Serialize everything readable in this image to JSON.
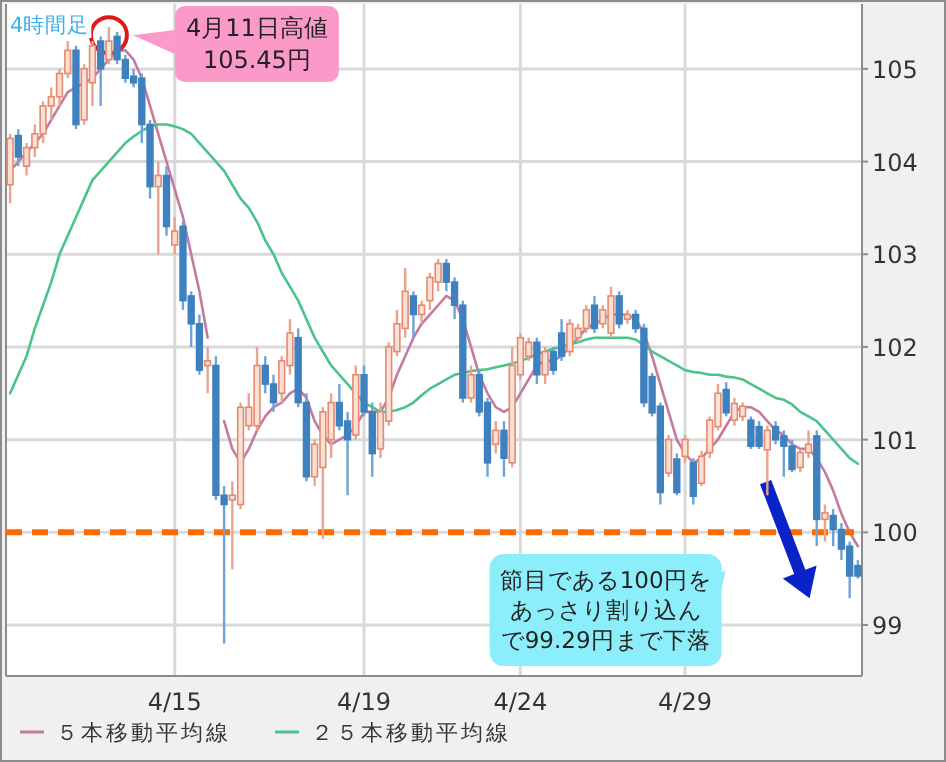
{
  "chart_data": {
    "type": "candlestick",
    "categories": [
      null,
      null,
      null,
      null,
      null,
      null,
      null,
      null,
      null,
      null,
      null,
      null,
      null,
      null,
      null,
      null,
      null,
      null,
      null,
      null,
      "4/15",
      null,
      null,
      null,
      null,
      null,
      null,
      null,
      null,
      null,
      null,
      null,
      null,
      null,
      null,
      null,
      null,
      null,
      null,
      null,
      null,
      null,
      null,
      "4/19",
      null,
      null,
      null,
      null,
      null,
      null,
      null,
      null,
      null,
      null,
      null,
      null,
      null,
      null,
      null,
      null,
      null,
      null,
      "4/24",
      null,
      null,
      null,
      null,
      null,
      null,
      null,
      null,
      null,
      null,
      null,
      null,
      null,
      null,
      null,
      null,
      null,
      null,
      null,
      "4/29",
      null,
      null,
      null,
      null,
      null,
      null,
      null,
      null,
      null,
      null,
      null,
      null,
      null,
      null,
      null,
      null,
      null,
      null,
      null,
      null,
      null
    ],
    "ohlc": [
      [
        103.75,
        104.3,
        103.55,
        104.25
      ],
      [
        104.28,
        104.35,
        103.95,
        104.05
      ],
      [
        103.95,
        104.2,
        103.85,
        104.15
      ],
      [
        104.15,
        104.4,
        104.05,
        104.3
      ],
      [
        104.3,
        104.65,
        104.2,
        104.6
      ],
      [
        104.6,
        104.8,
        104.45,
        104.7
      ],
      [
        104.7,
        105.0,
        104.6,
        104.95
      ],
      [
        104.95,
        105.3,
        104.9,
        105.2
      ],
      [
        105.2,
        105.25,
        104.35,
        104.4
      ],
      [
        104.45,
        105.05,
        104.4,
        105.0
      ],
      [
        104.85,
        105.3,
        104.6,
        105.25
      ],
      [
        105.3,
        105.35,
        104.6,
        105.0
      ],
      [
        105.1,
        105.45,
        105.05,
        105.3
      ],
      [
        105.35,
        105.4,
        105.05,
        105.1
      ],
      [
        105.1,
        105.15,
        104.85,
        104.9
      ],
      [
        104.92,
        105.0,
        104.8,
        104.85
      ],
      [
        104.9,
        104.95,
        104.2,
        104.4
      ],
      [
        104.4,
        104.45,
        103.6,
        103.73
      ],
      [
        103.73,
        104.0,
        103.0,
        103.85
      ],
      [
        103.85,
        103.95,
        103.2,
        103.3
      ],
      [
        103.1,
        103.4,
        103.0,
        103.25
      ],
      [
        103.3,
        103.35,
        102.4,
        102.5
      ],
      [
        102.55,
        102.6,
        102.0,
        102.25
      ],
      [
        102.25,
        102.35,
        101.7,
        101.75
      ],
      [
        101.8,
        102.0,
        101.5,
        101.85
      ],
      [
        101.8,
        101.9,
        100.35,
        100.4
      ],
      [
        100.4,
        100.5,
        98.8,
        100.3
      ],
      [
        100.35,
        100.55,
        99.6,
        100.4
      ],
      [
        100.3,
        101.4,
        100.25,
        101.35
      ],
      [
        101.15,
        101.5,
        101.1,
        101.35
      ],
      [
        101.15,
        102.0,
        101.1,
        101.8
      ],
      [
        101.8,
        101.9,
        101.5,
        101.6
      ],
      [
        101.6,
        101.7,
        101.3,
        101.4
      ],
      [
        101.5,
        101.9,
        101.4,
        101.85
      ],
      [
        101.8,
        102.3,
        101.7,
        102.15
      ],
      [
        102.1,
        102.2,
        101.35,
        101.4
      ],
      [
        101.4,
        101.5,
        100.55,
        100.6
      ],
      [
        100.6,
        101.0,
        100.5,
        100.95
      ],
      [
        100.7,
        101.35,
        99.93,
        101.3
      ],
      [
        101.0,
        101.5,
        100.8,
        101.4
      ],
      [
        101.4,
        101.6,
        101.1,
        101.15
      ],
      [
        101.2,
        101.3,
        100.4,
        101.0
      ],
      [
        101.05,
        101.8,
        101.0,
        101.7
      ],
      [
        101.7,
        101.8,
        101.25,
        101.3
      ],
      [
        101.3,
        101.4,
        100.6,
        100.85
      ],
      [
        100.9,
        101.4,
        100.8,
        101.3
      ],
      [
        101.2,
        102.05,
        101.15,
        102.0
      ],
      [
        101.95,
        102.4,
        101.9,
        102.25
      ],
      [
        102.2,
        102.85,
        102.1,
        102.6
      ],
      [
        102.55,
        102.6,
        102.1,
        102.35
      ],
      [
        102.35,
        102.5,
        102.25,
        102.45
      ],
      [
        102.5,
        102.8,
        102.4,
        102.75
      ],
      [
        102.7,
        102.95,
        102.6,
        102.9
      ],
      [
        102.9,
        102.95,
        102.6,
        102.7
      ],
      [
        102.7,
        102.75,
        102.3,
        102.45
      ],
      [
        102.45,
        102.5,
        101.4,
        101.45
      ],
      [
        101.45,
        101.8,
        101.4,
        101.7
      ],
      [
        101.7,
        101.75,
        101.25,
        101.3
      ],
      [
        101.4,
        101.45,
        100.6,
        100.75
      ],
      [
        100.95,
        101.2,
        100.85,
        101.1
      ],
      [
        101.1,
        101.2,
        100.6,
        100.8
      ],
      [
        100.75,
        102.0,
        100.7,
        101.8
      ],
      [
        101.7,
        102.15,
        101.65,
        102.1
      ],
      [
        101.9,
        102.1,
        101.85,
        102.05
      ],
      [
        102.05,
        102.1,
        101.6,
        101.7
      ],
      [
        101.7,
        102.0,
        101.6,
        101.95
      ],
      [
        101.95,
        102.0,
        101.7,
        101.75
      ],
      [
        102.15,
        102.3,
        101.85,
        101.9
      ],
      [
        101.95,
        102.3,
        101.9,
        102.25
      ],
      [
        102.1,
        102.25,
        102.05,
        102.2
      ],
      [
        102.2,
        102.45,
        102.15,
        102.4
      ],
      [
        102.45,
        102.55,
        102.15,
        102.2
      ],
      [
        102.25,
        102.45,
        102.2,
        102.4
      ],
      [
        102.15,
        102.65,
        102.1,
        102.55
      ],
      [
        102.55,
        102.6,
        102.2,
        102.25
      ],
      [
        102.3,
        102.4,
        102.25,
        102.35
      ],
      [
        102.35,
        102.4,
        102.15,
        102.2
      ],
      [
        102.2,
        102.25,
        101.35,
        101.4
      ],
      [
        101.68,
        101.72,
        101.25,
        101.29
      ],
      [
        101.36,
        101.4,
        100.3,
        100.43
      ],
      [
        100.64,
        101.05,
        100.6,
        101.0
      ],
      [
        100.79,
        100.85,
        100.4,
        100.43
      ],
      [
        100.82,
        101.05,
        100.75,
        101.0
      ],
      [
        100.75,
        100.8,
        100.3,
        100.39
      ],
      [
        100.53,
        100.88,
        100.5,
        100.82
      ],
      [
        100.86,
        101.25,
        100.8,
        101.21
      ],
      [
        101.14,
        101.6,
        101.1,
        101.5
      ],
      [
        101.54,
        101.62,
        101.25,
        101.29
      ],
      [
        101.21,
        101.45,
        101.15,
        101.39
      ],
      [
        101.25,
        101.4,
        101.2,
        101.36
      ],
      [
        101.21,
        101.25,
        100.9,
        100.93
      ],
      [
        101.14,
        101.2,
        100.9,
        100.93
      ],
      [
        100.89,
        101.15,
        100.4,
        101.1
      ],
      [
        101.14,
        101.2,
        100.95,
        101.0
      ],
      [
        101.04,
        101.1,
        100.6,
        100.93
      ],
      [
        100.93,
        101.0,
        100.65,
        100.68
      ],
      [
        100.7,
        100.9,
        100.65,
        100.86
      ],
      [
        100.86,
        101.1,
        100.8,
        100.95
      ],
      [
        101.04,
        101.1,
        99.85,
        100.14
      ],
      [
        100.14,
        100.3,
        99.9,
        100.21
      ],
      [
        100.18,
        100.25,
        99.85,
        100.03
      ],
      [
        100.03,
        100.1,
        99.7,
        99.82
      ],
      [
        99.85,
        99.9,
        99.29,
        99.53
      ],
      [
        99.64,
        99.7,
        99.5,
        99.53
      ]
    ],
    "series": [
      {
        "name": "５本移動平均線",
        "type": "line",
        "color": "#c57aa0",
        "values": [
          103.9,
          104.0,
          104.1,
          104.2,
          104.3,
          104.45,
          104.6,
          104.75,
          104.8,
          104.85,
          104.9,
          105.0,
          105.1,
          105.2,
          105.2,
          105.1,
          104.9,
          104.6,
          104.3,
          104.0,
          103.7,
          103.4,
          103.0,
          102.6,
          102.1,
          null,
          101.2,
          100.9,
          100.75,
          100.9,
          101.1,
          101.25,
          101.35,
          101.4,
          101.5,
          101.55,
          101.45,
          101.2,
          101.05,
          100.95,
          101.0,
          101.05,
          101.15,
          101.3,
          101.3,
          101.3,
          101.45,
          101.7,
          101.9,
          102.1,
          102.25,
          102.35,
          102.45,
          102.55,
          102.5,
          102.3,
          102.0,
          101.7,
          101.5,
          101.35,
          101.3,
          101.35,
          101.5,
          101.65,
          101.8,
          101.85,
          101.85,
          101.9,
          102.0,
          102.1,
          102.2,
          102.25,
          102.3,
          102.35,
          102.35,
          102.35,
          102.3,
          102.15,
          101.9,
          101.6,
          101.3,
          101.0,
          100.85,
          100.75,
          100.8,
          100.9,
          101.0,
          101.15,
          101.3,
          101.35,
          101.35,
          101.3,
          101.2,
          101.1,
          101.05,
          100.95,
          100.9,
          100.9,
          100.8,
          100.65,
          100.45,
          100.2,
          100.0,
          99.85
        ]
      },
      {
        "name": "２５本移動平均線",
        "type": "line",
        "color": "#4cc38a",
        "values": [
          101.5,
          101.7,
          101.9,
          102.2,
          102.45,
          102.7,
          103.0,
          103.2,
          103.4,
          103.6,
          103.8,
          103.9,
          104.0,
          104.1,
          104.2,
          104.27,
          104.33,
          104.38,
          104.4,
          104.4,
          104.38,
          104.35,
          104.3,
          104.2,
          104.1,
          104.0,
          103.9,
          103.75,
          103.6,
          103.5,
          103.35,
          103.15,
          103.0,
          102.8,
          102.65,
          102.5,
          102.3,
          102.1,
          101.95,
          101.8,
          101.7,
          101.6,
          101.5,
          101.4,
          101.35,
          101.3,
          101.3,
          101.32,
          101.35,
          101.4,
          101.48,
          101.55,
          101.6,
          101.65,
          101.7,
          101.72,
          101.74,
          101.75,
          101.76,
          101.78,
          101.8,
          101.82,
          101.85,
          101.88,
          101.92,
          101.95,
          101.98,
          102.0,
          102.03,
          102.05,
          102.08,
          102.1,
          102.1,
          102.1,
          102.1,
          102.1,
          102.08,
          102.02,
          101.95,
          101.9,
          101.85,
          101.8,
          101.75,
          101.73,
          101.72,
          101.7,
          101.7,
          101.68,
          101.67,
          101.65,
          101.6,
          101.55,
          101.5,
          101.45,
          101.43,
          101.38,
          101.3,
          101.25,
          101.2,
          101.1,
          101.0,
          100.9,
          100.8,
          100.74
        ]
      }
    ],
    "ylim": [
      98.45,
      105.7
    ],
    "yticks": [
      99,
      100,
      101,
      102,
      103,
      104,
      105
    ],
    "grid": true,
    "legend": "bottom",
    "ref_lines": [
      {
        "axis": "y",
        "value": 100,
        "color": "#ff6a00",
        "line_style": "dashed"
      }
    ],
    "annotations": [
      "4時間足",
      "4月11日高値105.45円",
      "節目である100円をあっさり割り込んで99.29円まで下落"
    ]
  }
}
